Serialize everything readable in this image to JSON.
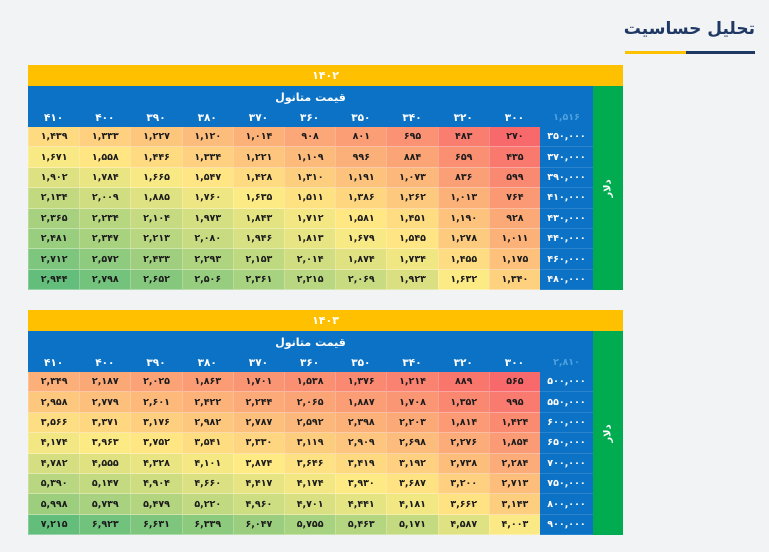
{
  "title": {
    "text": "تحلیل حساسیت"
  },
  "colors": {
    "gold": "#FFC000",
    "blue": "#0C72C5",
    "green": "#00AC4F",
    "navy": "#203864",
    "corner_text": "#4FA0DE",
    "page_bg": "#F2F3F5",
    "heat_min": "#F8696B",
    "heat_mid": "#FFEB84",
    "heat_max": "#63BE7B"
  },
  "chart_data": [
    {
      "type": "heatmap",
      "title": "۱۴۰۲",
      "xlabel": "قیمت متانول",
      "ylabel": "دلار",
      "x": [
        300,
        320,
        340,
        350,
        360,
        370,
        380,
        390,
        400,
        410
      ],
      "y": [
        350000,
        370000,
        390000,
        410000,
        430000,
        440000,
        460000,
        480000
      ],
      "corner_value": 1516,
      "values": [
        [
          270,
          483,
          695,
          801,
          908,
          1014,
          1120,
          1227,
          1333,
          1439
        ],
        [
          435,
          659,
          884,
          996,
          1109,
          1221,
          1334,
          1446,
          1558,
          1671
        ],
        [
          599,
          836,
          1073,
          1191,
          1310,
          1428,
          1547,
          1665,
          1784,
          1902
        ],
        [
          764,
          1013,
          1262,
          1386,
          1511,
          1635,
          1760,
          1885,
          2009,
          2134
        ],
        [
          928,
          1190,
          1451,
          1581,
          1712,
          1843,
          1973,
          2104,
          2234,
          2365
        ],
        [
          1011,
          1278,
          1545,
          1679,
          1813,
          1946,
          2080,
          2213,
          2347,
          2481
        ],
        [
          1175,
          1455,
          1734,
          1874,
          2014,
          2153,
          2293,
          2433,
          2572,
          2712
        ],
        [
          1340,
          1632,
          1923,
          2069,
          2215,
          2361,
          2506,
          2652,
          2798,
          2944
        ]
      ],
      "colorscale": [
        "#F8696B",
        "#FFEB84",
        "#63BE7B"
      ],
      "layout": "columns ordered right-to-left (rtl), row headers on right, unit bar far right"
    },
    {
      "type": "heatmap",
      "title": "۱۴۰۳",
      "xlabel": "قیمت متانول",
      "ylabel": "دلار",
      "x": [
        300,
        320,
        340,
        350,
        360,
        370,
        380,
        390,
        400,
        410
      ],
      "y": [
        500000,
        550000,
        600000,
        650000,
        700000,
        750000,
        800000,
        900000
      ],
      "corner_value": 2810,
      "values": [
        [
          565,
          889,
          1214,
          1376,
          1538,
          1701,
          1863,
          2025,
          2187,
          2349
        ],
        [
          995,
          1352,
          1708,
          1887,
          2065,
          2244,
          2422,
          2601,
          2779,
          2958
        ],
        [
          1424,
          1814,
          2203,
          2398,
          2592,
          2787,
          2982,
          3176,
          3371,
          3566
        ],
        [
          1854,
          2276,
          2698,
          2909,
          3119,
          3330,
          3541,
          3752,
          3963,
          4174
        ],
        [
          2284,
          2738,
          3192,
          3419,
          3646,
          3874,
          4101,
          4328,
          4555,
          4782
        ],
        [
          2713,
          3200,
          3687,
          3930,
          4174,
          4417,
          4660,
          4904,
          5147,
          5390
        ],
        [
          3143,
          3662,
          4181,
          4441,
          4701,
          4960,
          5220,
          5479,
          5739,
          5998
        ],
        [
          4003,
          4587,
          5171,
          5463,
          5755,
          6047,
          6339,
          6631,
          6923,
          7215
        ]
      ],
      "colorscale": [
        "#F8696B",
        "#FFEB84",
        "#63BE7B"
      ],
      "layout": "columns ordered right-to-left (rtl), row headers on right, unit bar far right"
    }
  ]
}
